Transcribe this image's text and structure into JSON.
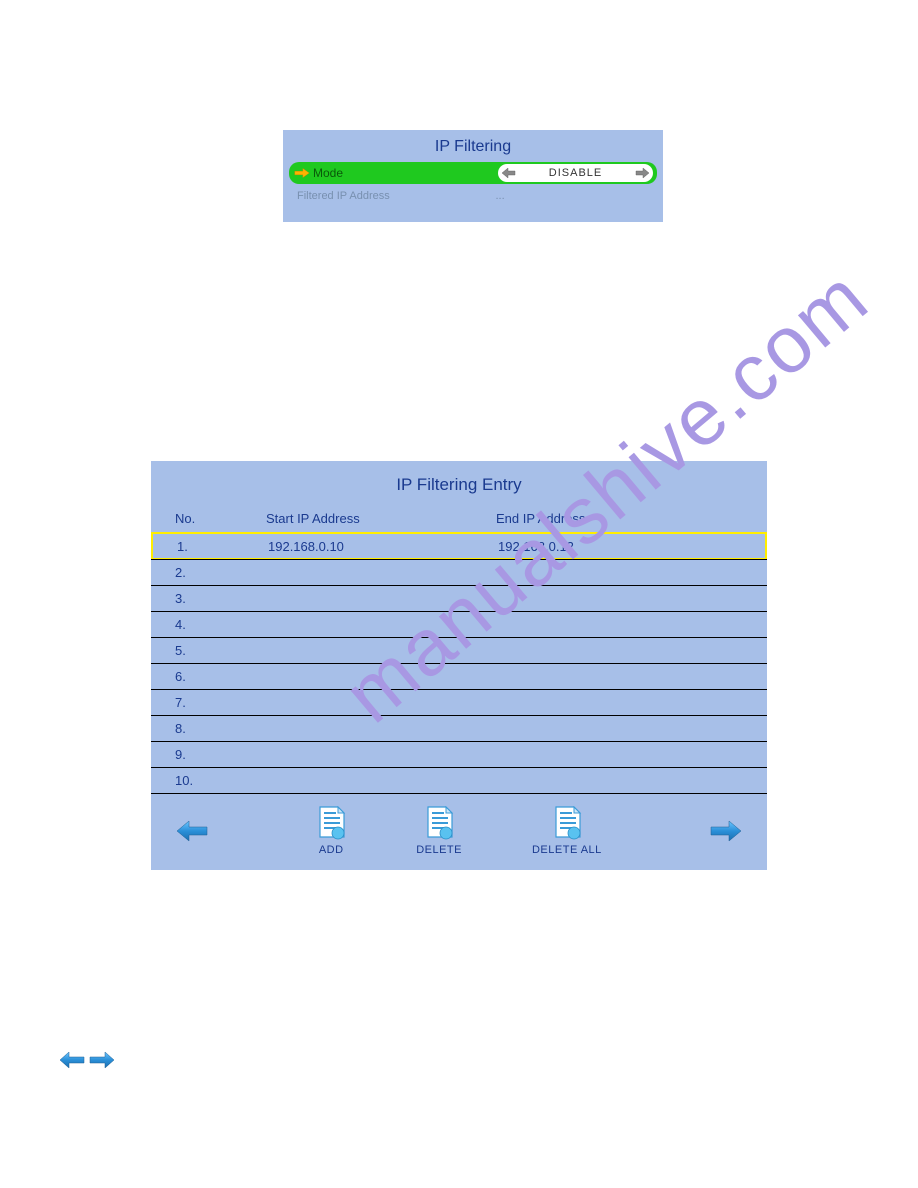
{
  "watermark_text": "manualshive.com",
  "top_panel": {
    "title": "IP Filtering",
    "mode_label": "Mode",
    "mode_value": "DISABLE",
    "filtered_label": "Filtered IP Address",
    "filtered_value": "..."
  },
  "entry_panel": {
    "title": "IP Filtering Entry",
    "columns": {
      "no": "No.",
      "start": "Start IP Address",
      "end": "End IP Address"
    },
    "rows": [
      {
        "no": "1.",
        "start": "192.168.0.10",
        "end": "192.168.0.12",
        "selected": true
      },
      {
        "no": "2.",
        "start": "",
        "end": "",
        "selected": false
      },
      {
        "no": "3.",
        "start": "",
        "end": "",
        "selected": false
      },
      {
        "no": "4.",
        "start": "",
        "end": "",
        "selected": false
      },
      {
        "no": "5.",
        "start": "",
        "end": "",
        "selected": false
      },
      {
        "no": "6.",
        "start": "",
        "end": "",
        "selected": false
      },
      {
        "no": "7.",
        "start": "",
        "end": "",
        "selected": false
      },
      {
        "no": "8.",
        "start": "",
        "end": "",
        "selected": false
      },
      {
        "no": "9.",
        "start": "",
        "end": "",
        "selected": false
      },
      {
        "no": "10.",
        "start": "",
        "end": "",
        "selected": false
      }
    ],
    "actions": {
      "add": "ADD",
      "delete": "DELETE",
      "delete_all": "DELETE ALL"
    }
  },
  "colors": {
    "panel_bg": "#a7bfe8",
    "title_text": "#1a3a8f",
    "mode_bg": "#1fc91f",
    "highlight_border": "#ffee00",
    "arrow_blue": "#2b8fd8",
    "arrow_dark": "#1f5f94",
    "watermark": "#a898e3"
  }
}
